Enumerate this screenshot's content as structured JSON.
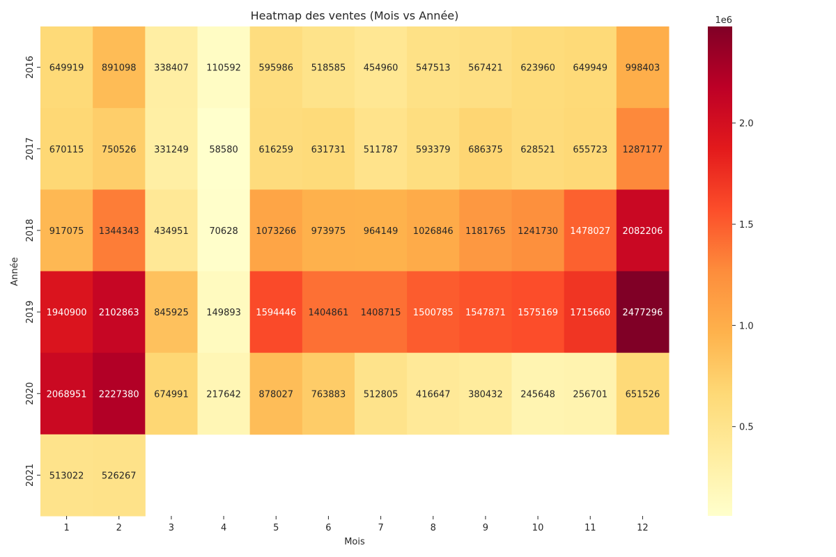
{
  "chart_data": {
    "type": "heatmap",
    "title": "Heatmap des ventes (Mois vs Année)",
    "xlabel": "Mois",
    "ylabel": "Année",
    "x_categories": [
      "1",
      "2",
      "3",
      "4",
      "5",
      "6",
      "7",
      "8",
      "9",
      "10",
      "11",
      "12"
    ],
    "y_categories": [
      "2016",
      "2017",
      "2018",
      "2019",
      "2020",
      "2021"
    ],
    "values": [
      [
        649919,
        891098,
        338407,
        110592,
        595986,
        518585,
        454960,
        547513,
        567421,
        623960,
        649949,
        998403
      ],
      [
        670115,
        750526,
        331249,
        58580,
        616259,
        631731,
        511787,
        593379,
        686375,
        628521,
        655723,
        1287177
      ],
      [
        917075,
        1344343,
        434951,
        70628,
        1073266,
        973975,
        964149,
        1026846,
        1181765,
        1241730,
        1478027,
        2082206
      ],
      [
        1940900,
        2102863,
        845925,
        149893,
        1594446,
        1404861,
        1408715,
        1500785,
        1547871,
        1575169,
        1715660,
        2477296
      ],
      [
        2068951,
        2227380,
        674991,
        217642,
        878027,
        763883,
        512805,
        416647,
        380432,
        245648,
        256701,
        651526
      ],
      [
        513022,
        526267,
        null,
        null,
        null,
        null,
        null,
        null,
        null,
        null,
        null,
        null
      ]
    ],
    "colormap": "YlOrRd",
    "colorbar": {
      "range": [
        58580,
        2477296
      ],
      "ticks": [
        0.5,
        1.0,
        1.5,
        2.0
      ],
      "tick_labels": [
        "0.5",
        "1.0",
        "1.5",
        "2.0"
      ],
      "scale_label": "1e6"
    },
    "annotations": true,
    "grid": false
  }
}
